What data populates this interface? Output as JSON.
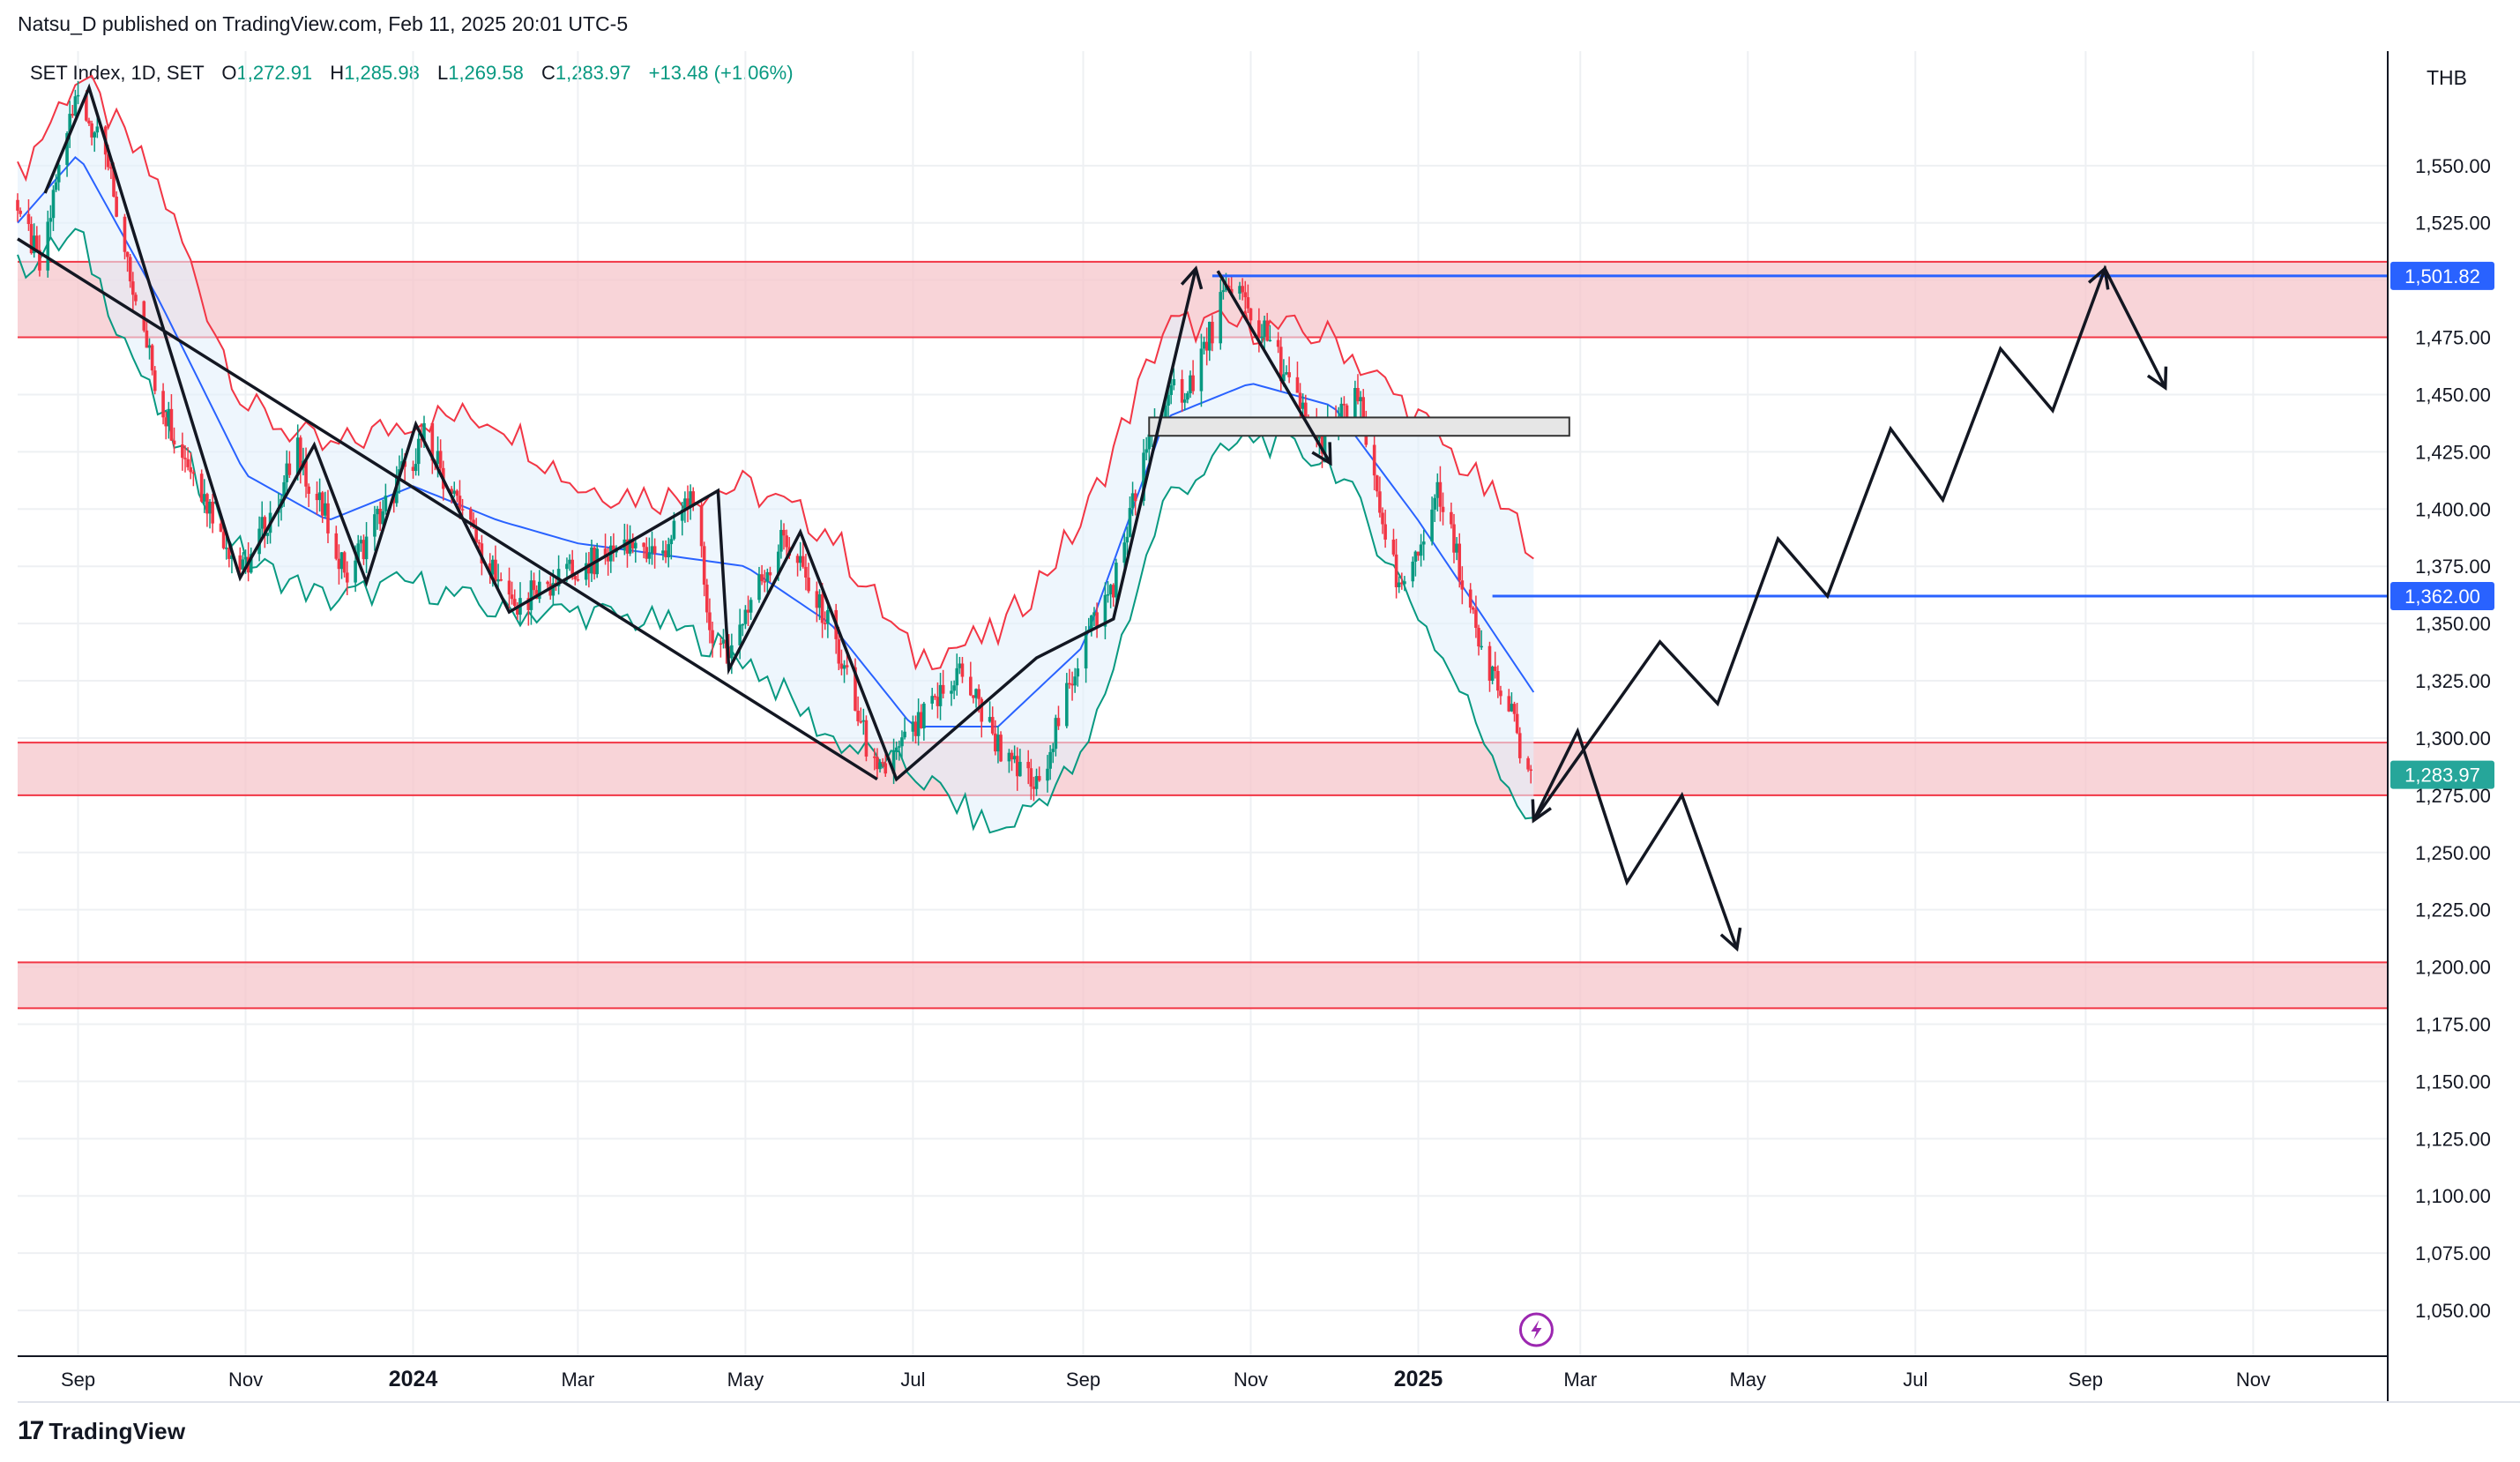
{
  "header": {
    "published": "Natsu_D published on TradingView.com, Feb 11, 2025 20:01 UTC-5"
  },
  "legend": {
    "symbol": "SET Index, 1D, SET",
    "o_label": "O",
    "open": "1,272.91",
    "h_label": "H",
    "high": "1,285.98",
    "l_label": "L",
    "low": "1,269.58",
    "c_label": "C",
    "close": "1,283.97",
    "change": "+13.48 (+1.06%)"
  },
  "footer": {
    "brand": "TradingView"
  },
  "colors": {
    "up": "#089981",
    "down": "#f23645",
    "zone": "#f6c5cb",
    "zone_line": "#f23645",
    "level": "#2962ff",
    "upper_band": "#f23645",
    "lower_band": "#089981",
    "basis": "#2962ff",
    "band_fill": "#e3f0fb",
    "last_price": "#26a69a",
    "icon": "#9c27b0"
  },
  "chart_data": {
    "type": "candlestick",
    "currency": "THB",
    "ylim": [
      1030,
      1600
    ],
    "y_ticks": [
      1050,
      1075,
      1100,
      1125,
      1150,
      1175,
      1200,
      1225,
      1250,
      1275,
      1300,
      1325,
      1350,
      1375,
      1400,
      1425,
      1450,
      1475,
      1500,
      1525,
      1550
    ],
    "y_tick_labels": [
      "1,050.00",
      "1,075.00",
      "1,100.00",
      "1,125.00",
      "1,150.00",
      "1,175.00",
      "1,200.00",
      "1,225.00",
      "1,250.00",
      "1,275.00",
      "1,300.00",
      "1,325.00",
      "1,350.00",
      "1,375.00",
      "1,400.00",
      "1,425.00",
      "1,450.00",
      "1,475.00",
      "1,500.00",
      "1,525.00",
      "1,550.00"
    ],
    "x_range": [
      "2023-08-10",
      "2025-12-20"
    ],
    "x_ticks": [
      {
        "date": "2023-09-01",
        "label": "Sep",
        "bold": false
      },
      {
        "date": "2023-11-01",
        "label": "Nov",
        "bold": false
      },
      {
        "date": "2024-01-01",
        "label": "2024",
        "bold": true
      },
      {
        "date": "2024-03-01",
        "label": "Mar",
        "bold": false
      },
      {
        "date": "2024-05-01",
        "label": "May",
        "bold": false
      },
      {
        "date": "2024-07-01",
        "label": "Jul",
        "bold": false
      },
      {
        "date": "2024-09-01",
        "label": "Sep",
        "bold": false
      },
      {
        "date": "2024-11-01",
        "label": "Nov",
        "bold": false
      },
      {
        "date": "2025-01-01",
        "label": "2025",
        "bold": true
      },
      {
        "date": "2025-03-01",
        "label": "Mar",
        "bold": false
      },
      {
        "date": "2025-05-01",
        "label": "May",
        "bold": false
      },
      {
        "date": "2025-07-01",
        "label": "Jul",
        "bold": false
      },
      {
        "date": "2025-09-01",
        "label": "Sep",
        "bold": false
      },
      {
        "date": "2025-11-01",
        "label": "Nov",
        "bold": false
      }
    ],
    "price_path": [
      [
        "2023-08-10",
        1535
      ],
      [
        "2023-08-18",
        1505
      ],
      [
        "2023-08-31",
        1585
      ],
      [
        "2023-09-12",
        1548
      ],
      [
        "2023-09-30",
        1450
      ],
      [
        "2023-10-15",
        1410
      ],
      [
        "2023-10-31",
        1372
      ],
      [
        "2023-11-20",
        1425
      ],
      [
        "2023-12-08",
        1372
      ],
      [
        "2024-01-05",
        1432
      ],
      [
        "2024-01-20",
        1395
      ],
      [
        "2024-02-05",
        1357
      ],
      [
        "2024-02-25",
        1370
      ],
      [
        "2024-03-15",
        1382
      ],
      [
        "2024-04-01",
        1382
      ],
      [
        "2024-04-12",
        1408
      ],
      [
        "2024-04-20",
        1330
      ],
      [
        "2024-05-15",
        1388
      ],
      [
        "2024-06-01",
        1348
      ],
      [
        "2024-06-18",
        1282
      ],
      [
        "2024-07-03",
        1305
      ],
      [
        "2024-07-18",
        1330
      ],
      [
        "2024-08-05",
        1288
      ],
      [
        "2024-08-15",
        1278
      ],
      [
        "2024-09-01",
        1342
      ],
      [
        "2024-09-12",
        1368
      ],
      [
        "2024-09-28",
        1445
      ],
      [
        "2024-10-10",
        1455
      ],
      [
        "2024-10-25",
        1500
      ],
      [
        "2024-11-10",
        1468
      ],
      [
        "2024-11-25",
        1428
      ],
      [
        "2024-12-10",
        1448
      ],
      [
        "2024-12-25",
        1362
      ],
      [
        "2025-01-08",
        1408
      ],
      [
        "2025-01-25",
        1338
      ],
      [
        "2025-02-05",
        1305
      ],
      [
        "2025-02-11",
        1284
      ]
    ],
    "bands": {
      "upper": [
        [
          "2023-08-10",
          1545
        ],
        [
          "2023-09-01",
          1590
        ],
        [
          "2023-10-01",
          1540
        ],
        [
          "2023-11-01",
          1445
        ],
        [
          "2023-12-01",
          1425
        ],
        [
          "2024-01-01",
          1440
        ],
        [
          "2024-02-01",
          1440
        ],
        [
          "2024-03-01",
          1410
        ],
        [
          "2024-04-01",
          1405
        ],
        [
          "2024-05-01",
          1410
        ],
        [
          "2024-06-01",
          1390
        ],
        [
          "2024-07-01",
          1335
        ],
        [
          "2024-08-01",
          1345
        ],
        [
          "2024-09-01",
          1395
        ],
        [
          "2024-10-01",
          1480
        ],
        [
          "2024-11-01",
          1480
        ],
        [
          "2024-12-01",
          1475
        ],
        [
          "2025-01-01",
          1440
        ],
        [
          "2025-02-12",
          1385
        ]
      ],
      "basis": [
        [
          "2023-08-10",
          1525
        ],
        [
          "2023-09-01",
          1555
        ],
        [
          "2023-10-01",
          1490
        ],
        [
          "2023-11-01",
          1415
        ],
        [
          "2023-12-01",
          1395
        ],
        [
          "2024-01-01",
          1410
        ],
        [
          "2024-02-01",
          1395
        ],
        [
          "2024-03-01",
          1385
        ],
        [
          "2024-04-01",
          1380
        ],
        [
          "2024-05-01",
          1375
        ],
        [
          "2024-06-01",
          1350
        ],
        [
          "2024-07-01",
          1305
        ],
        [
          "2024-08-01",
          1305
        ],
        [
          "2024-09-01",
          1340
        ],
        [
          "2024-10-01",
          1440
        ],
        [
          "2024-11-01",
          1455
        ],
        [
          "2024-12-01",
          1445
        ],
        [
          "2025-01-01",
          1395
        ],
        [
          "2025-02-12",
          1320
        ]
      ],
      "lower": [
        [
          "2023-08-10",
          1505
        ],
        [
          "2023-09-01",
          1520
        ],
        [
          "2023-10-01",
          1440
        ],
        [
          "2023-11-01",
          1378
        ],
        [
          "2023-12-01",
          1360
        ],
        [
          "2024-01-01",
          1368
        ],
        [
          "2024-02-01",
          1355
        ],
        [
          "2024-03-01",
          1355
        ],
        [
          "2024-04-01",
          1350
        ],
        [
          "2024-05-01",
          1335
        ],
        [
          "2024-06-01",
          1300
        ],
        [
          "2024-07-01",
          1285
        ],
        [
          "2024-08-01",
          1258
        ],
        [
          "2024-09-01",
          1290
        ],
        [
          "2024-10-01",
          1405
        ],
        [
          "2024-11-01",
          1432
        ],
        [
          "2024-12-01",
          1420
        ],
        [
          "2025-01-01",
          1355
        ],
        [
          "2025-02-12",
          1260
        ]
      ]
    },
    "zones": [
      {
        "from": 1475,
        "to": 1508
      },
      {
        "from": 1275,
        "to": 1298
      },
      {
        "from": 1182,
        "to": 1202
      }
    ],
    "levels": [
      {
        "price": 1501.82,
        "from": "2024-10-18",
        "label": "1,501.82"
      },
      {
        "price": 1362.0,
        "from": "2025-01-28",
        "label": "1,362.00"
      }
    ],
    "last_price": {
      "price": 1283.97,
      "label": "1,283.97"
    },
    "gray_box": {
      "from": "2024-09-25",
      "to": "2025-02-25",
      "low": 1432,
      "high": 1440
    },
    "drawn_paths": [
      [
        [
          "2023-08-20",
          1538
        ],
        [
          "2023-09-05",
          1584
        ],
        [
          "2023-10-30",
          1370
        ],
        [
          "2023-11-26",
          1428
        ],
        [
          "2023-12-15",
          1368
        ],
        [
          "2024-01-02",
          1437
        ],
        [
          "2024-02-05",
          1355
        ],
        [
          "2024-04-21",
          1408
        ],
        [
          "2024-04-25",
          1330
        ],
        [
          "2024-05-21",
          1390
        ],
        [
          "2024-06-25",
          1282
        ],
        [
          "2024-08-15",
          1335
        ],
        [
          "2024-09-12",
          1352
        ],
        [
          "2024-10-12",
          1505
        ]
      ],
      [
        [
          "2023-08-10",
          1518
        ],
        [
          "2024-06-18",
          1282
        ]
      ],
      [
        [
          "2024-10-20",
          1504
        ],
        [
          "2024-11-30",
          1420
        ]
      ],
      [
        [
          "2025-02-12",
          1264
        ],
        [
          "2025-02-28",
          1303
        ],
        [
          "2025-03-18",
          1237
        ],
        [
          "2025-04-07",
          1275
        ],
        [
          "2025-04-27",
          1208
        ]
      ],
      [
        [
          "2025-02-12",
          1264
        ],
        [
          "2025-03-30",
          1342
        ],
        [
          "2025-04-20",
          1315
        ],
        [
          "2025-05-12",
          1387
        ],
        [
          "2025-05-30",
          1362
        ],
        [
          "2025-06-22",
          1435
        ],
        [
          "2025-07-11",
          1404
        ],
        [
          "2025-08-01",
          1470
        ],
        [
          "2025-08-20",
          1443
        ],
        [
          "2025-09-08",
          1505
        ],
        [
          "2025-09-30",
          1453
        ]
      ]
    ],
    "arrow_heads": [
      {
        "at": [
          "2024-10-12",
          1505
        ],
        "from": [
          "2024-09-12",
          1352
        ]
      },
      {
        "at": [
          "2024-11-30",
          1420
        ],
        "from": [
          "2024-10-20",
          1504
        ]
      },
      {
        "at": [
          "2025-04-27",
          1208
        ],
        "from": [
          "2025-04-07",
          1275
        ]
      },
      {
        "at": [
          "2025-02-12",
          1264
        ],
        "from": [
          "2025-02-28",
          1303
        ]
      },
      {
        "at": [
          "2025-09-08",
          1505
        ],
        "from": [
          "2025-08-20",
          1443
        ]
      },
      {
        "at": [
          "2025-09-30",
          1453
        ],
        "from": [
          "2025-09-08",
          1505
        ]
      }
    ]
  }
}
